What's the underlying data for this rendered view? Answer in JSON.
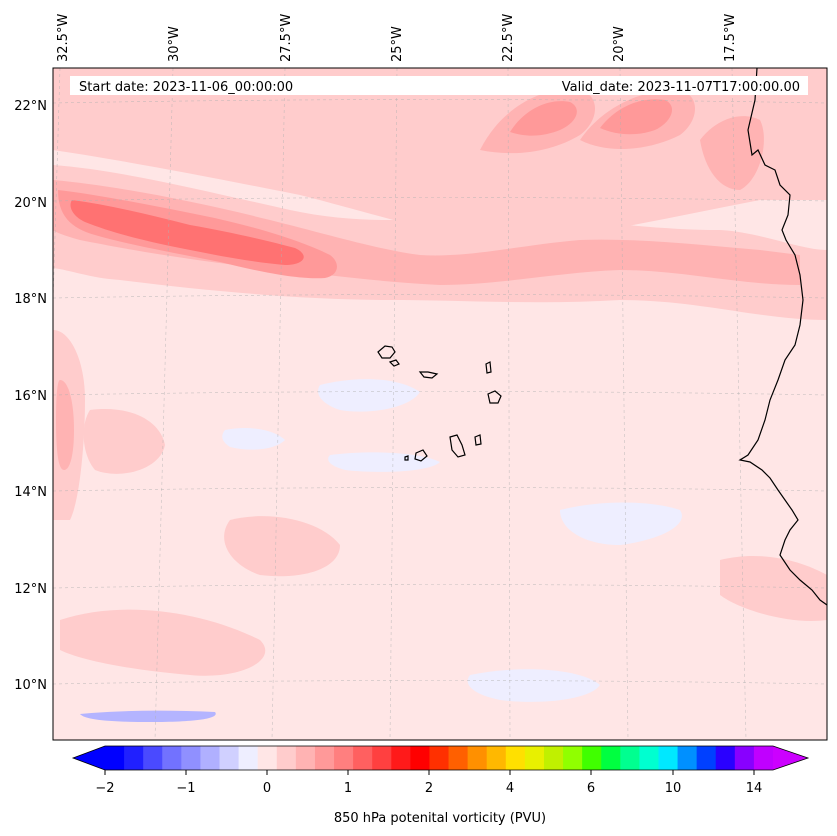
{
  "header": {
    "start_date": "Start date: 2023-11-06_00:00:00",
    "valid_date": "Valid_date: 2023-11-07T17:00:00.00"
  },
  "axes": {
    "lon_labels": [
      "32.5°W",
      "30°W",
      "27.5°W",
      "25°W",
      "22.5°W",
      "20°W",
      "17.5°W"
    ],
    "lat_labels": [
      "22°N",
      "20°N",
      "18°N",
      "16°N",
      "14°N",
      "12°N",
      "10°N"
    ]
  },
  "colorbar": {
    "label": "850 hPa potenital vorticity (PVU)",
    "tick_labels": [
      "−2",
      "−1",
      "0",
      "1",
      "2",
      "4",
      "6",
      "10",
      "14"
    ],
    "colors": [
      "#0000ff",
      "#2020ff",
      "#4a4aff",
      "#7272ff",
      "#9090ff",
      "#b0b0ff",
      "#d0d0ff",
      "#eeeeff",
      "#ffe6e6",
      "#ffcccc",
      "#ffb3b3",
      "#ff9999",
      "#ff7f7f",
      "#ff6060",
      "#ff4040",
      "#ff1a1a",
      "#ff0000",
      "#ff3000",
      "#ff6000",
      "#ff9000",
      "#ffb800",
      "#ffe000",
      "#e8f000",
      "#c0f000",
      "#90ff00",
      "#40ff00",
      "#00ff40",
      "#00ff90",
      "#00ffd0",
      "#00e8ff",
      "#0090ff",
      "#0040ff",
      "#2a00ff",
      "#8800ff",
      "#c000ff"
    ],
    "extend_min_color": "#0000ff",
    "extend_max_color": "#cc00ff"
  },
  "field_colors": {
    "background": "#ffe6e6",
    "light_pink": "#ffcccc",
    "mid_pink": "#ffb3b3",
    "pink": "#ff9999",
    "red_core": "#ff7272",
    "pale_blue": "#eeeeff",
    "blue": "#b4b4ff"
  }
}
